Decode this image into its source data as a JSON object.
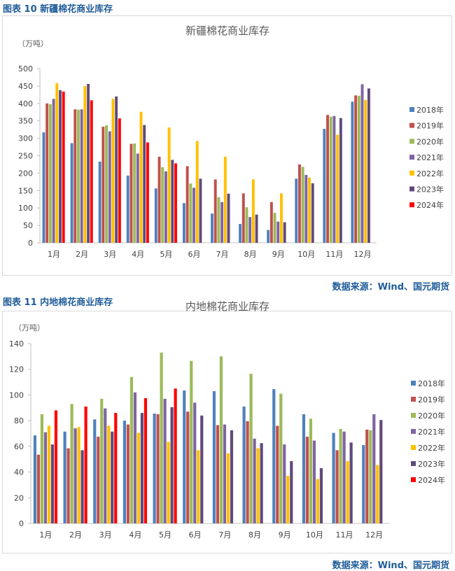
{
  "chart_data": [
    {
      "type": "bar",
      "figure_label": "图表 10  新疆棉花商业库存",
      "title": "新疆棉花商业库存",
      "ylabel": "（万吨）",
      "xlabel": "",
      "ylim": [
        0,
        500
      ],
      "yticks": [
        0,
        50,
        100,
        150,
        200,
        250,
        300,
        350,
        400,
        450,
        500
      ],
      "categories": [
        "1月",
        "2月",
        "3月",
        "4月",
        "5月",
        "6月",
        "7月",
        "8月",
        "9月",
        "10月",
        "11月",
        "12月"
      ],
      "legend_position": "right",
      "series": [
        {
          "name": "2018年",
          "color": "#4F81BD",
          "values": [
            317,
            286,
            233,
            193,
            156,
            114,
            84,
            54,
            37,
            184,
            327,
            405
          ]
        },
        {
          "name": "2019年",
          "color": "#C0504D",
          "values": [
            400,
            383,
            333,
            284,
            247,
            220,
            182,
            142,
            117,
            225,
            367,
            423
          ]
        },
        {
          "name": "2020年",
          "color": "#9BBB59",
          "values": [
            398,
            382,
            337,
            285,
            217,
            170,
            131,
            102,
            86,
            218,
            362,
            422
          ]
        },
        {
          "name": "2021年",
          "color": "#8064A2",
          "values": [
            413,
            383,
            320,
            256,
            205,
            158,
            117,
            74,
            61,
            195,
            364,
            455
          ]
        },
        {
          "name": "2022年",
          "color": "#FFC000",
          "values": [
            458,
            450,
            413,
            376,
            331,
            292,
            247,
            182,
            142,
            187,
            310,
            410
          ]
        },
        {
          "name": "2023年",
          "color": "#604A7B",
          "values": [
            438,
            456,
            420,
            338,
            238,
            184,
            141,
            81,
            59,
            171,
            358,
            443
          ]
        },
        {
          "name": "2024年",
          "color": "#FF0000",
          "values": [
            434,
            409,
            357,
            288,
            228,
            null,
            null,
            null,
            null,
            null,
            null,
            null
          ]
        }
      ],
      "source": "数据来源：Wind、国元期货"
    },
    {
      "type": "bar",
      "figure_label": "图表 11  内地棉花商业库存",
      "title": "内地棉花商业库存",
      "ylabel": "（万吨）",
      "xlabel": "",
      "ylim": [
        0,
        140
      ],
      "yticks": [
        0,
        20,
        40,
        60,
        80,
        100,
        120,
        140
      ],
      "categories": [
        "1月",
        "2月",
        "3月",
        "4月",
        "5月",
        "6月",
        "7月",
        "8月",
        "9月",
        "10月",
        "11月",
        "12月"
      ],
      "legend_position": "right",
      "series": [
        {
          "name": "2018年",
          "color": "#4F81BD",
          "values": [
            68.5,
            71.5,
            81,
            80,
            85.5,
            103.5,
            103,
            91,
            104.5,
            85,
            70.5,
            61
          ]
        },
        {
          "name": "2019年",
          "color": "#C0504D",
          "values": [
            53.5,
            58.5,
            67.5,
            77,
            85,
            87,
            76.5,
            79.5,
            76,
            67.5,
            57,
            73
          ]
        },
        {
          "name": "2020年",
          "color": "#9BBB59",
          "values": [
            85,
            93,
            97,
            114,
            133,
            126.5,
            130,
            116.5,
            101,
            81.5,
            73.5,
            72.5
          ]
        },
        {
          "name": "2021年",
          "color": "#8064A2",
          "values": [
            71,
            74,
            89.5,
            102,
            97,
            94,
            77,
            66,
            61.5,
            64.5,
            71.5,
            85
          ]
        },
        {
          "name": "2022年",
          "color": "#FFC000",
          "values": [
            76,
            75,
            76,
            70.5,
            63.5,
            57,
            54.5,
            58.5,
            37,
            34.5,
            48.5,
            45.5
          ]
        },
        {
          "name": "2023年",
          "color": "#604A7B",
          "values": [
            61.5,
            57,
            71.5,
            86,
            90.5,
            84,
            72.5,
            62.5,
            48.5,
            43,
            63,
            80.5
          ]
        },
        {
          "name": "2024年",
          "color": "#FF0000",
          "values": [
            88,
            91,
            86,
            97.5,
            105,
            null,
            null,
            null,
            null,
            null,
            null,
            null
          ]
        }
      ],
      "source": "数据来源：Wind、国元期货"
    }
  ]
}
